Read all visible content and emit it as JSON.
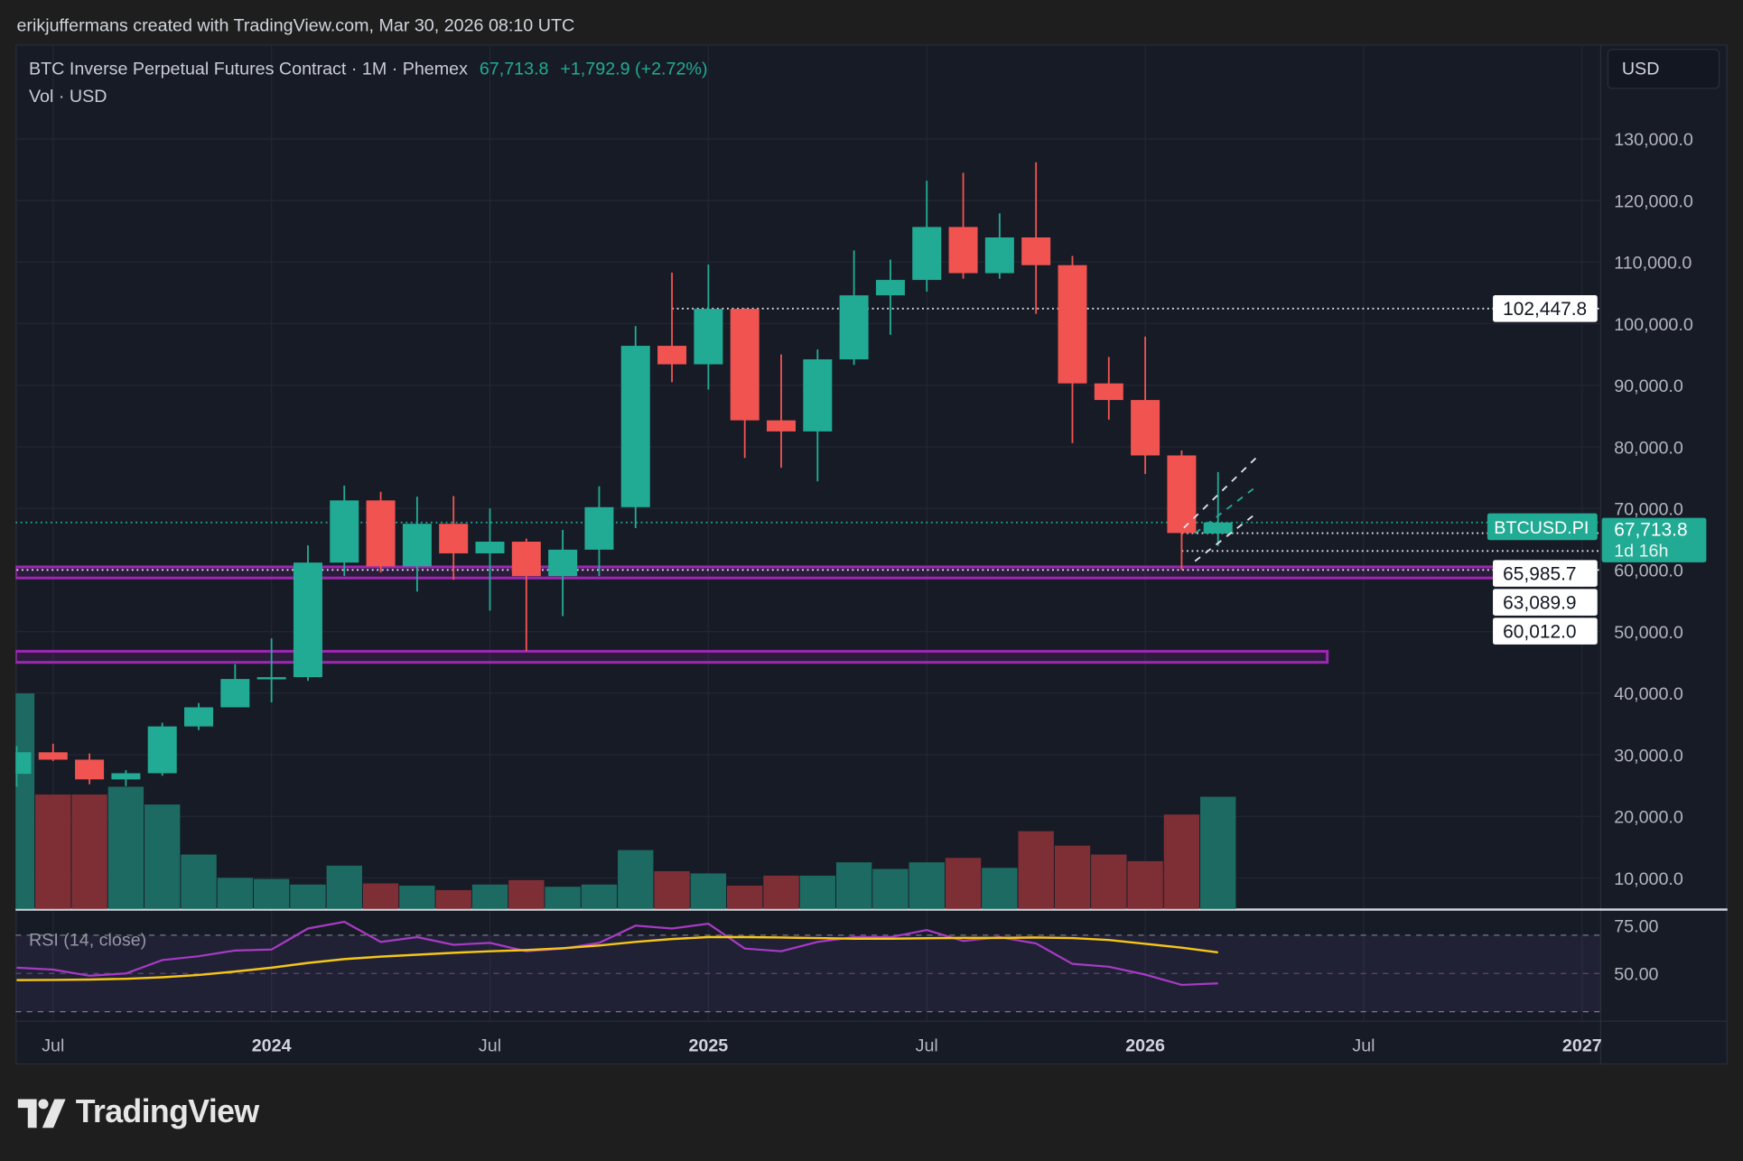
{
  "credit": "erikjuffermans created with TradingView.com, Mar 30, 2026 08:10 UTC",
  "legend": {
    "title": "BTC Inverse Perpetual Futures Contract · 1M · Phemex",
    "last": "67,713.8",
    "change": "+1,792.9 (+2.72%)",
    "volume_label": "Vol · USD"
  },
  "currency_button": "USD",
  "rsi_label": "RSI (14, close)",
  "brand": "TradingView",
  "colors": {
    "up": "#22ab94",
    "down": "#f05350",
    "vol_up": "#1d6a63",
    "vol_down": "#7e2f35",
    "zone": "#9c27b0",
    "rsi": "#a73bc4",
    "rsi_ma": "#f5c518",
    "bg": "#171b26"
  },
  "chart_data": [
    {
      "type": "candlestick",
      "title": "BTC Inverse Perpetual Futures Contract · 1M · Phemex",
      "x": [
        "2023-06",
        "2023-07",
        "2023-08",
        "2023-09",
        "2023-10",
        "2023-11",
        "2023-12",
        "2024-01",
        "2024-02",
        "2024-03",
        "2024-04",
        "2024-05",
        "2024-06",
        "2024-07",
        "2024-08",
        "2024-09",
        "2024-10",
        "2024-11",
        "2024-12",
        "2025-01",
        "2025-02",
        "2025-03",
        "2025-04",
        "2025-05",
        "2025-06",
        "2025-07",
        "2025-08",
        "2025-09",
        "2025-10",
        "2025-11",
        "2025-12",
        "2026-01",
        "2026-02",
        "2026-03"
      ],
      "ohlc": [
        [
          26900,
          31400,
          24800,
          30400
        ],
        [
          30400,
          31800,
          29000,
          29200
        ],
        [
          29200,
          30200,
          25200,
          26000
        ],
        [
          26000,
          27500,
          24900,
          27000
        ],
        [
          27000,
          35200,
          26600,
          34600
        ],
        [
          34600,
          38400,
          34000,
          37700
        ],
        [
          37700,
          44700,
          37700,
          42300
        ],
        [
          42300,
          48900,
          38500,
          42600
        ],
        [
          42600,
          64000,
          42000,
          61200
        ],
        [
          61200,
          73700,
          59000,
          71300
        ],
        [
          71300,
          72700,
          59600,
          60600
        ],
        [
          60600,
          71900,
          56500,
          67500
        ],
        [
          67500,
          72000,
          58400,
          62700
        ],
        [
          62700,
          70000,
          53400,
          64600
        ],
        [
          64600,
          65100,
          46800,
          59000
        ],
        [
          59000,
          66500,
          52500,
          63300
        ],
        [
          63300,
          73600,
          59000,
          70200
        ],
        [
          70200,
          99600,
          66800,
          96400
        ],
        [
          96400,
          108300,
          90500,
          93400
        ],
        [
          93400,
          109600,
          89300,
          102400
        ],
        [
          102400,
          102500,
          78200,
          84300
        ],
        [
          84300,
          95000,
          76600,
          82500
        ],
        [
          82500,
          95800,
          74400,
          94200
        ],
        [
          94200,
          111900,
          93300,
          104600
        ],
        [
          104600,
          110400,
          98200,
          107100
        ],
        [
          107100,
          123200,
          105200,
          115700
        ],
        [
          115700,
          124500,
          107300,
          108200
        ],
        [
          108200,
          117900,
          107300,
          114000
        ],
        [
          114000,
          126200,
          101600,
          109500
        ],
        [
          109500,
          111000,
          80600,
          90300
        ],
        [
          90300,
          94600,
          84400,
          87600
        ],
        [
          87600,
          97900,
          75600,
          78600
        ],
        [
          78600,
          79400,
          60000,
          66000
        ],
        [
          65920,
          75900,
          63900,
          67713.8
        ]
      ],
      "volume_relative": [
        194,
        103,
        103,
        110,
        94,
        49,
        28,
        27,
        22,
        39,
        23,
        21,
        17,
        22,
        26,
        20,
        22,
        53,
        34,
        32,
        21,
        30,
        30,
        42,
        36,
        42,
        46,
        37,
        70,
        57,
        49,
        43,
        85,
        101
      ],
      "y_axis": {
        "min": 0,
        "max": 140000,
        "ticks": [
          130000,
          120000,
          110000,
          100000,
          90000,
          80000,
          70000,
          60000,
          50000,
          40000,
          30000,
          20000,
          10000
        ],
        "tick_labels": [
          "130,000.0",
          "120,000.0",
          "110,000.0",
          "100,000.0",
          "90,000.0",
          "80,000.0",
          "70,000.0",
          "60,000.0",
          "50,000.0",
          "40,000.0",
          "30,000.0",
          "20,000.0",
          "10,000.0"
        ]
      },
      "x_axis": {
        "ticks": [
          {
            "month": "2023-07",
            "label": "Jul"
          },
          {
            "month": "2024-01",
            "label": "2024"
          },
          {
            "month": "2024-07",
            "label": "Jul"
          },
          {
            "month": "2025-01",
            "label": "2025"
          },
          {
            "month": "2025-07",
            "label": "Jul"
          },
          {
            "month": "2026-01",
            "label": "2026"
          },
          {
            "month": "2026-07",
            "label": "Jul"
          },
          {
            "month": "2027-01",
            "label": "2027"
          }
        ]
      },
      "zones": [
        {
          "from": 58700,
          "to": 60500,
          "start": "2023-06",
          "end": "2027-01"
        },
        {
          "from": 45000,
          "to": 46800,
          "start": "2023-06",
          "end": "2026-06"
        }
      ],
      "price_lines": [
        {
          "value": 102447.8,
          "label": "102,447.8",
          "start": "2024-12"
        },
        {
          "value": 65985.7,
          "label": "65,985.7",
          "start": "2026-02"
        },
        {
          "value": 63089.9,
          "label": "63,089.9",
          "start": "2026-02"
        },
        {
          "value": 60012.0,
          "label": "60,012.0",
          "start": "2023-06"
        }
      ],
      "last_price": {
        "symbol": "BTCUSD.PI",
        "value": 67713.8,
        "label": "67,713.8",
        "countdown": "1d 16h"
      }
    },
    {
      "type": "line",
      "title": "RSI (14, close)",
      "series": [
        {
          "name": "RSI",
          "values": [
            53,
            52,
            48.8,
            50,
            57,
            59,
            62,
            62.5,
            73.5,
            77,
            66.5,
            69,
            65,
            66,
            61.6,
            63,
            66,
            75,
            73.5,
            76,
            63,
            61.6,
            66.5,
            69,
            69,
            72.7,
            67,
            69,
            65.7,
            55,
            53.5,
            49.4,
            44,
            44.8
          ]
        },
        {
          "name": "RSI MA",
          "values": [
            46.5,
            46.6,
            46.8,
            47.2,
            48,
            49.2,
            51,
            53,
            55.5,
            57.5,
            58.8,
            59.8,
            60.8,
            61.6,
            62.2,
            63.2,
            64.6,
            66.5,
            68,
            69,
            69,
            68.8,
            68.5,
            68.2,
            68.2,
            68.4,
            68.6,
            68.6,
            68.8,
            68.5,
            67.5,
            65.5,
            63.5,
            61
          ]
        }
      ],
      "bands": [
        70,
        50,
        30
      ],
      "y_axis": {
        "tick_labels": [
          "75.00",
          "50.00"
        ],
        "ticks": [
          75,
          50
        ]
      }
    }
  ]
}
